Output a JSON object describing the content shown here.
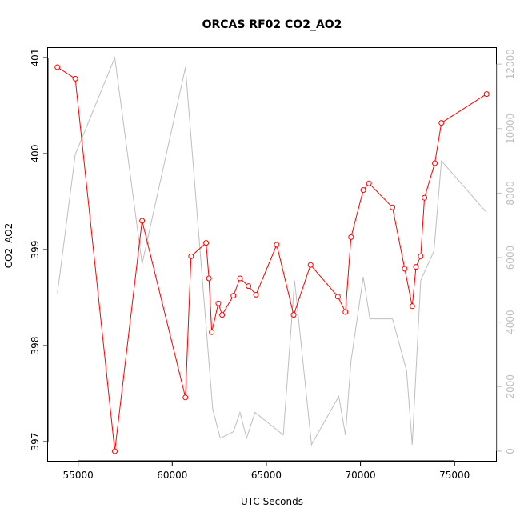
{
  "chart_data": {
    "type": "line",
    "title": "ORCAS RF02 CO2_AO2",
    "xlabel": "UTC Seconds",
    "ylabel": "CO2_AO2",
    "xlim": [
      53400,
      77200
    ],
    "ylim": [
      396.8,
      401.1
    ],
    "y2lim": [
      -300,
      12500
    ],
    "x_ticks": [
      55000,
      60000,
      65000,
      70000,
      75000
    ],
    "y_ticks": [
      397,
      398,
      399,
      400,
      401
    ],
    "y2_ticks": [
      0,
      2000,
      4000,
      6000,
      8000,
      10000,
      12000
    ],
    "grid": false,
    "colors": {
      "primary": "#ff0000",
      "secondary": "#bebebe",
      "axis": "#000000"
    },
    "series": [
      {
        "axis": "left",
        "style": "line+points",
        "color": "#ff0000",
        "x": [
          53900,
          54850,
          56950,
          58400,
          60700,
          61000,
          61800,
          61950,
          62100,
          62450,
          62650,
          63250,
          63600,
          64050,
          64450,
          65550,
          66450,
          67350,
          68800,
          69200,
          69500,
          70150,
          70450,
          71700,
          72350,
          72750,
          72950,
          73200,
          73400,
          73950,
          74300,
          76700
        ],
        "y": [
          400.9,
          400.78,
          396.9,
          399.3,
          397.46,
          398.93,
          399.07,
          398.7,
          398.14,
          398.44,
          398.32,
          398.52,
          398.7,
          398.62,
          398.53,
          399.05,
          398.32,
          398.84,
          398.51,
          398.35,
          399.13,
          399.62,
          399.69,
          399.44,
          398.8,
          398.41,
          398.82,
          398.93,
          399.54,
          399.9,
          400.32,
          400.62
        ]
      },
      {
        "axis": "right",
        "style": "line",
        "color": "#bebebe",
        "x": [
          53900,
          54850,
          56950,
          58400,
          60700,
          62150,
          62550,
          63250,
          63600,
          63950,
          64400,
          65900,
          66500,
          67400,
          68850,
          69200,
          69500,
          70150,
          70500,
          71700,
          72450,
          72750,
          73200,
          73900,
          74300,
          76700
        ],
        "y": [
          4900,
          9200,
          12200,
          5800,
          11900,
          1300,
          400,
          600,
          1200,
          400,
          1200,
          500,
          5300,
          200,
          1700,
          500,
          2800,
          5400,
          4100,
          4100,
          2500,
          200,
          5300,
          6200,
          9000,
          7400
        ]
      }
    ]
  }
}
